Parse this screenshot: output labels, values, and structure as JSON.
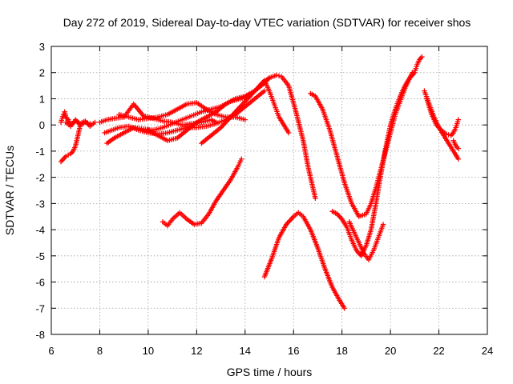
{
  "chart_data": {
    "type": "scatter",
    "title": "Day 272 of 2019, Sidereal Day-to-day VTEC variation (SDTVAR) for receiver shos",
    "xlabel": "GPS time / hours",
    "ylabel": "SDTVAR / TECUs",
    "xlim": [
      6,
      24
    ],
    "ylim": [
      -8,
      3
    ],
    "xticks": [
      "6",
      "8",
      "10",
      "12",
      "14",
      "16",
      "18",
      "20",
      "22",
      "24"
    ],
    "yticks": [
      "3",
      "2",
      "1",
      "0",
      "-1",
      "-2",
      "-3",
      "-4",
      "-5",
      "-6",
      "-7",
      "-8"
    ],
    "grid": true,
    "marker": "+",
    "color": "#ff0000",
    "series": [
      {
        "x": [
          6.4,
          6.5,
          6.55,
          6.6,
          6.7,
          6.8,
          7.0,
          7.2,
          7.4,
          7.6,
          7.8
        ],
        "y": [
          0.1,
          0.4,
          0.5,
          0.3,
          0.2,
          0.0,
          0.15,
          0.05,
          0.15,
          -0.05,
          0.1
        ]
      },
      {
        "x": [
          6.4,
          6.5,
          6.6,
          6.7,
          6.8,
          6.9,
          7.0,
          7.05,
          7.1,
          7.15,
          7.2
        ],
        "y": [
          -1.4,
          -1.3,
          -1.2,
          -1.15,
          -1.1,
          -1.0,
          -0.8,
          -0.6,
          -0.4,
          -0.2,
          0.0
        ]
      },
      {
        "x": [
          6.6,
          6.8,
          7.0,
          7.2,
          7.4,
          7.6
        ],
        "y": [
          0.1,
          -0.05,
          0.2,
          0.0,
          0.1,
          0.05
        ]
      },
      {
        "x": [
          8.0,
          8.3,
          8.6,
          9.0,
          9.2,
          9.4,
          9.8,
          10.2,
          10.6,
          11.0,
          11.4,
          11.8,
          12.2,
          12.6,
          12.8
        ],
        "y": [
          0.1,
          0.2,
          0.25,
          0.3,
          0.55,
          0.8,
          0.35,
          0.25,
          0.15,
          0.1,
          0.0,
          0.05,
          0.1,
          0.2,
          0.1
        ]
      },
      {
        "x": [
          8.2,
          8.5,
          8.8,
          9.2,
          9.6,
          10.0,
          10.4,
          10.8,
          11.2,
          11.6,
          12.0,
          12.4,
          12.8,
          13.2,
          13.6,
          14.0,
          14.4,
          14.8
        ],
        "y": [
          -0.3,
          -0.2,
          -0.1,
          -0.05,
          -0.2,
          -0.3,
          -0.35,
          -0.3,
          -0.2,
          -0.1,
          -0.1,
          -0.05,
          0.05,
          0.2,
          0.4,
          0.7,
          1.0,
          1.3
        ]
      },
      {
        "x": [
          8.3,
          8.6,
          9.0,
          9.4,
          9.8,
          10.2,
          10.6,
          11.0,
          11.4,
          11.8,
          12.2,
          12.6,
          13.0,
          13.4,
          13.8,
          14.2
        ],
        "y": [
          -0.7,
          -0.5,
          -0.3,
          -0.1,
          -0.15,
          -0.2,
          -0.1,
          0.05,
          0.2,
          0.35,
          0.5,
          0.6,
          0.7,
          0.9,
          1.0,
          1.1
        ]
      },
      {
        "x": [
          8.8,
          9.2,
          9.6,
          10.0,
          10.4,
          10.8,
          11.2,
          11.6,
          12.0,
          12.4,
          12.8,
          13.2,
          13.6,
          14.0
        ],
        "y": [
          0.4,
          0.3,
          0.2,
          0.25,
          0.3,
          0.4,
          0.6,
          0.8,
          0.85,
          0.6,
          0.4,
          0.3,
          0.3,
          0.2
        ]
      },
      {
        "x": [
          10.0,
          10.4,
          10.8,
          11.2,
          11.6,
          12.0,
          12.4,
          12.8,
          13.2,
          13.6,
          14.0,
          14.4,
          14.8,
          15.0
        ],
        "y": [
          -0.2,
          -0.4,
          -0.6,
          -0.5,
          -0.2,
          0.1,
          0.3,
          0.5,
          0.8,
          1.0,
          1.1,
          1.3,
          1.6,
          1.8
        ]
      },
      {
        "x": [
          12.2,
          12.6,
          13.0,
          13.4,
          13.8,
          14.2,
          14.6,
          15.0,
          15.3,
          15.5,
          15.8,
          16.1,
          16.4,
          16.6,
          16.8,
          16.9
        ],
        "y": [
          -0.7,
          -0.4,
          -0.1,
          0.3,
          0.7,
          1.1,
          1.5,
          1.8,
          1.9,
          1.85,
          1.5,
          0.5,
          -0.6,
          -1.6,
          -2.4,
          -2.8
        ]
      },
      {
        "x": [
          14.6,
          14.8,
          15.0,
          15.2,
          15.4,
          15.6,
          15.8
        ],
        "y": [
          1.5,
          1.7,
          1.3,
          0.8,
          0.3,
          0.0,
          -0.3
        ]
      },
      {
        "x": [
          10.6,
          10.8,
          11.0,
          11.3,
          11.6,
          11.9,
          12.2,
          12.5,
          12.8,
          13.1,
          13.4,
          13.7,
          13.85
        ],
        "y": [
          -3.7,
          -3.85,
          -3.6,
          -3.35,
          -3.6,
          -3.8,
          -3.75,
          -3.4,
          -2.9,
          -2.5,
          -2.1,
          -1.6,
          -1.3
        ]
      },
      {
        "x": [
          14.8,
          15.1,
          15.4,
          15.7,
          16.0,
          16.2,
          16.4,
          16.7,
          17.0,
          17.3,
          17.6,
          17.9,
          18.1
        ],
        "y": [
          -5.8,
          -5.1,
          -4.3,
          -3.8,
          -3.5,
          -3.35,
          -3.5,
          -4.0,
          -4.7,
          -5.5,
          -6.2,
          -6.7,
          -7.0
        ]
      },
      {
        "x": [
          16.7,
          16.9,
          17.2,
          17.5,
          17.8,
          18.1,
          18.4,
          18.7,
          19.0,
          19.2,
          19.4,
          19.6,
          19.8,
          20.0,
          20.2,
          20.4,
          20.6,
          20.8,
          20.9
        ],
        "y": [
          1.2,
          1.1,
          0.6,
          -0.2,
          -1.2,
          -2.2,
          -3.0,
          -3.5,
          -3.4,
          -3.0,
          -2.4,
          -1.7,
          -1.0,
          -0.3,
          0.4,
          0.9,
          1.4,
          1.8,
          2.0
        ]
      },
      {
        "x": [
          17.6,
          17.8,
          18.0,
          18.2,
          18.4,
          18.6,
          18.8,
          19.0,
          19.2,
          19.4,
          19.6,
          19.8,
          20.0,
          20.2,
          20.4,
          20.6,
          20.8,
          21.0,
          21.1,
          21.2,
          21.3
        ],
        "y": [
          -3.3,
          -3.4,
          -3.6,
          -3.9,
          -4.4,
          -4.8,
          -5.0,
          -4.6,
          -4.0,
          -3.0,
          -1.9,
          -0.9,
          0.0,
          0.6,
          1.1,
          1.5,
          1.8,
          2.0,
          2.3,
          2.5,
          2.6
        ]
      },
      {
        "x": [
          18.3,
          18.5,
          18.7,
          18.9,
          19.1,
          19.3,
          19.5,
          19.7
        ],
        "y": [
          -3.7,
          -4.1,
          -4.5,
          -4.9,
          -5.15,
          -4.8,
          -4.3,
          -3.8
        ]
      },
      {
        "x": [
          21.4,
          21.6,
          21.8,
          22.0,
          22.2,
          22.4,
          22.6,
          22.8
        ],
        "y": [
          1.3,
          0.8,
          0.3,
          -0.1,
          -0.4,
          -0.7,
          -1.0,
          -1.3
        ]
      },
      {
        "x": [
          21.5,
          21.7,
          21.9,
          22.1,
          22.3,
          22.5,
          22.6,
          22.7,
          22.8
        ],
        "y": [
          1.0,
          0.4,
          0.0,
          -0.2,
          -0.35,
          -0.4,
          -0.3,
          -0.1,
          0.2
        ]
      },
      {
        "x": [
          22.6,
          22.7,
          22.8
        ],
        "y": [
          -0.6,
          -0.8,
          -0.9
        ]
      }
    ]
  }
}
